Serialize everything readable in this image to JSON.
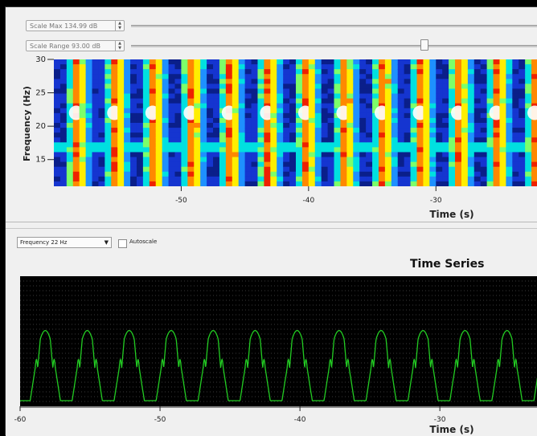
{
  "controls": {
    "scale_max": "Scale Max 134.99 dB",
    "scale_range": "Scale Range 93.00 dB",
    "scale_range_slider": 0.72,
    "frequency_select": "Frequency 22 Hz",
    "autoscale_label": "Autoscale",
    "autoscale_checked": false
  },
  "icon_names": [
    "spin-arrows-icon",
    "dropdown-arrow-icon",
    "checkbox-icon"
  ],
  "chart_data": [
    {
      "type": "heatmap",
      "title": "",
      "xlabel": "Time (s)",
      "ylabel": "Frequency (Hz)",
      "xlim": [
        -60,
        -22
      ],
      "ylim": [
        11,
        30
      ],
      "x_ticks": [
        -50,
        -40,
        -30
      ],
      "y_ticks": [
        15,
        20,
        25,
        30
      ],
      "peak_frequency": 22,
      "stripe_period_s": 3,
      "legend": "none"
    },
    {
      "type": "line",
      "title": "Time Series",
      "xlabel": "Time (s)",
      "ylabel": "",
      "xlim": [
        -60,
        -23
      ],
      "x_ticks": [
        -60,
        -50,
        -40,
        -30
      ],
      "series": [
        {
          "color": "#22cc22",
          "period_s": 3
        }
      ],
      "grid": true,
      "background": "#000000",
      "legend": "none"
    }
  ]
}
